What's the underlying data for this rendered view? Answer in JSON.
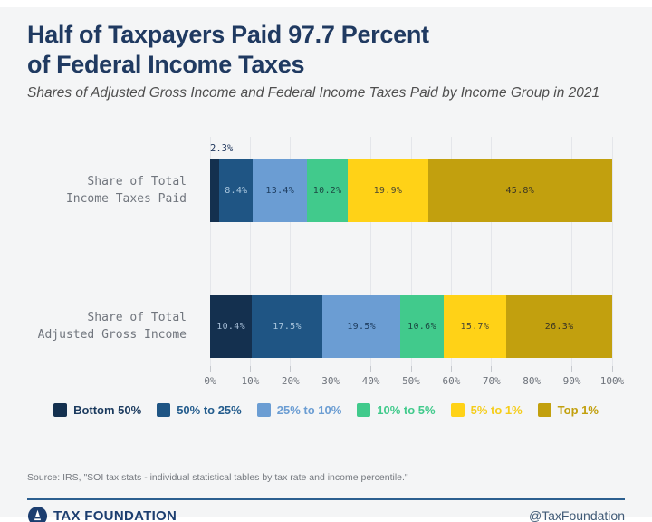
{
  "header": {
    "title_line1": "Half of Taxpayers Paid 97.7 Percent",
    "title_line2": "of Federal Income Taxes",
    "subtitle": "Shares of Adjusted Gross Income and Federal Income Taxes Paid by Income Group in 2021"
  },
  "chart_data": {
    "type": "bar",
    "stacked": true,
    "orientation": "horizontal",
    "title": "Half of Taxpayers Paid 97.7 Percent of Federal Income Taxes",
    "subtitle": "Shares of Adjusted Gross Income and Federal Income Taxes Paid by Income Group in 2021",
    "x_axis": {
      "min": 0,
      "max": 100,
      "ticks": [
        "0%",
        "10%",
        "20%",
        "30%",
        "40%",
        "50%",
        "60%",
        "70%",
        "80%",
        "90%",
        "100%"
      ]
    },
    "grid": true,
    "legend_position": "bottom",
    "groups": [
      {
        "name": "Bottom 50%",
        "color": "#14304f",
        "on_segment_label_color": "#a6bdd6",
        "legend_text_color": "#1b3a5e"
      },
      {
        "name": "50% to 25%",
        "color": "#1f5584",
        "on_segment_label_color": "#a9c6de",
        "legend_text_color": "#235c8d"
      },
      {
        "name": "25% to 10%",
        "color": "#6b9dd3",
        "on_segment_label_color": "#1d3c5e",
        "legend_text_color": "#6b9dd3"
      },
      {
        "name": "10% to 5%",
        "color": "#41ca8c",
        "on_segment_label_color": "#1d4a44",
        "legend_text_color": "#41ca8c"
      },
      {
        "name": "5% to 1%",
        "color": "#ffd217",
        "on_segment_label_color": "#4e4a33",
        "legend_text_color": "#f5cd1b"
      },
      {
        "name": "Top 1%",
        "color": "#c2a00e",
        "on_segment_label_color": "#3a3524",
        "legend_text_color": "#c2a00e"
      }
    ],
    "rows": [
      {
        "category_lines": [
          "Share of Total",
          "Income Taxes Paid"
        ],
        "segments": [
          {
            "group": "Bottom 50%",
            "value": 2.3,
            "label": "2.3%",
            "label_placement": "above"
          },
          {
            "group": "50% to 25%",
            "value": 8.4,
            "label": "8.4%",
            "label_placement": "inside"
          },
          {
            "group": "25% to 10%",
            "value": 13.4,
            "label": "13.4%",
            "label_placement": "inside"
          },
          {
            "group": "10% to 5%",
            "value": 10.2,
            "label": "10.2%",
            "label_placement": "inside"
          },
          {
            "group": "5% to 1%",
            "value": 19.9,
            "label": "19.9%",
            "label_placement": "inside"
          },
          {
            "group": "Top 1%",
            "value": 45.8,
            "label": "45.8%",
            "label_placement": "inside"
          }
        ]
      },
      {
        "category_lines": [
          "Share of Total",
          "Adjusted Gross Income"
        ],
        "segments": [
          {
            "group": "Bottom 50%",
            "value": 10.4,
            "label": "10.4%",
            "label_placement": "inside"
          },
          {
            "group": "50% to 25%",
            "value": 17.5,
            "label": "17.5%",
            "label_placement": "inside"
          },
          {
            "group": "25% to 10%",
            "value": 19.5,
            "label": "19.5%",
            "label_placement": "inside"
          },
          {
            "group": "10% to 5%",
            "value": 10.6,
            "label": "10.6%",
            "label_placement": "inside"
          },
          {
            "group": "5% to 1%",
            "value": 15.7,
            "label": "15.7%",
            "label_placement": "inside"
          },
          {
            "group": "Top 1%",
            "value": 26.3,
            "label": "26.3%",
            "label_placement": "inside"
          }
        ]
      }
    ]
  },
  "footer": {
    "source": "Source: IRS, \"SOI tax stats - individual statistical tables by tax rate and income percentile.\"",
    "logo_text": "TAX FOUNDATION",
    "handle": "@TaxFoundation"
  }
}
